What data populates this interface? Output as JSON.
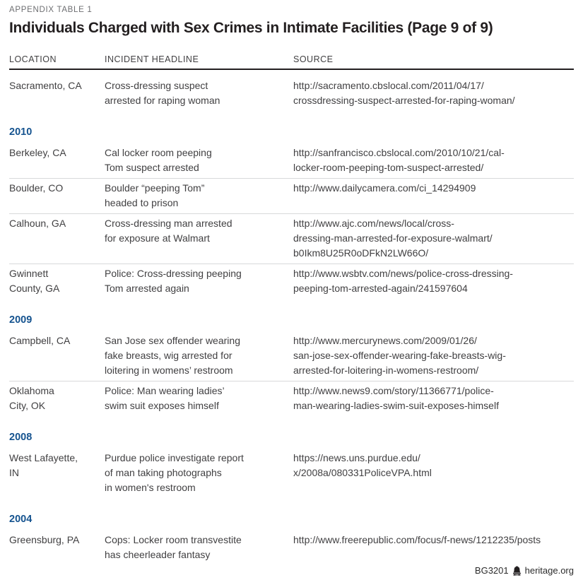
{
  "page": {
    "eyebrow": "APPENDIX TABLE 1",
    "title": "Individuals Charged with Sex Crimes in Intimate Facilities (Page 9 of 9)",
    "footer": {
      "doc_id": "BG3201",
      "logo_icon": "liberty-bell-icon",
      "site": "heritage.org"
    }
  },
  "colors": {
    "accent_blue": "#15538f",
    "rule_dark": "#231f20",
    "divider": "#d8d9da",
    "body_text": "#414042",
    "eyebrow_gray": "#6d6e71"
  },
  "table": {
    "columns": [
      "LOCATION",
      "INCIDENT HEADLINE",
      "SOURCE"
    ],
    "groups": [
      {
        "year": "",
        "rows": [
          {
            "location": "Sacramento, CA",
            "headline": "Cross-dressing suspect\narrested for raping woman",
            "source": "http://sacramento.cbslocal.com/2011/04/17/\ncrossdressing-suspect-arrested-for-raping-woman/"
          }
        ]
      },
      {
        "year": "2010",
        "rows": [
          {
            "location": "Berkeley, CA",
            "headline": "Cal locker room peeping\nTom suspect arrested",
            "source": "http://sanfrancisco.cbslocal.com/2010/10/21/cal-\nlocker-room-peeping-tom-suspect-arrested/"
          },
          {
            "location": "Boulder, CO",
            "headline": "Boulder “peeping Tom”\nheaded to prison",
            "source": "http://www.dailycamera.com/ci_14294909"
          },
          {
            "location": "Calhoun, GA",
            "headline": "Cross-dressing man arrested\nfor exposure at Walmart",
            "source": "http://www.ajc.com/news/local/cross-\ndressing-man-arrested-for-exposure-walmart/\nb0Ikm8U25R0oDFkN2LW66O/"
          },
          {
            "location": "Gwinnett\nCounty, GA",
            "headline": "Police: Cross-dressing peeping\nTom arrested again",
            "source": "http://www.wsbtv.com/news/police-cross-dressing-\npeeping-tom-arrested-again/241597604"
          }
        ]
      },
      {
        "year": "2009",
        "rows": [
          {
            "location": "Campbell, CA",
            "headline": "San Jose sex offender wearing\nfake breasts, wig arrested for\nloitering in womens’ restroom",
            "source": "http://www.mercurynews.com/2009/01/26/\nsan-jose-sex-offender-wearing-fake-breasts-wig-\narrested-for-loitering-in-womens-restroom/"
          },
          {
            "location": "Oklahoma\nCity, OK",
            "headline": "Police: Man wearing ladies’\nswim suit exposes himself",
            "source": "http://www.news9.com/story/11366771/police-\nman-wearing-ladies-swim-suit-exposes-himself"
          }
        ]
      },
      {
        "year": "2008",
        "rows": [
          {
            "location": "West Lafayette,\nIN",
            "headline": "Purdue police investigate report\nof man taking photographs\nin women's restroom",
            "source": "https://news.uns.purdue.edu/\nx/2008a/080331PoliceVPA.html"
          }
        ]
      },
      {
        "year": "2004",
        "rows": [
          {
            "location": "Greensburg, PA",
            "headline": "Cops: Locker room transvestite\nhas cheerleader fantasy",
            "source": "http://www.freerepublic.com/focus/f-news/1212235/posts"
          }
        ]
      }
    ]
  }
}
